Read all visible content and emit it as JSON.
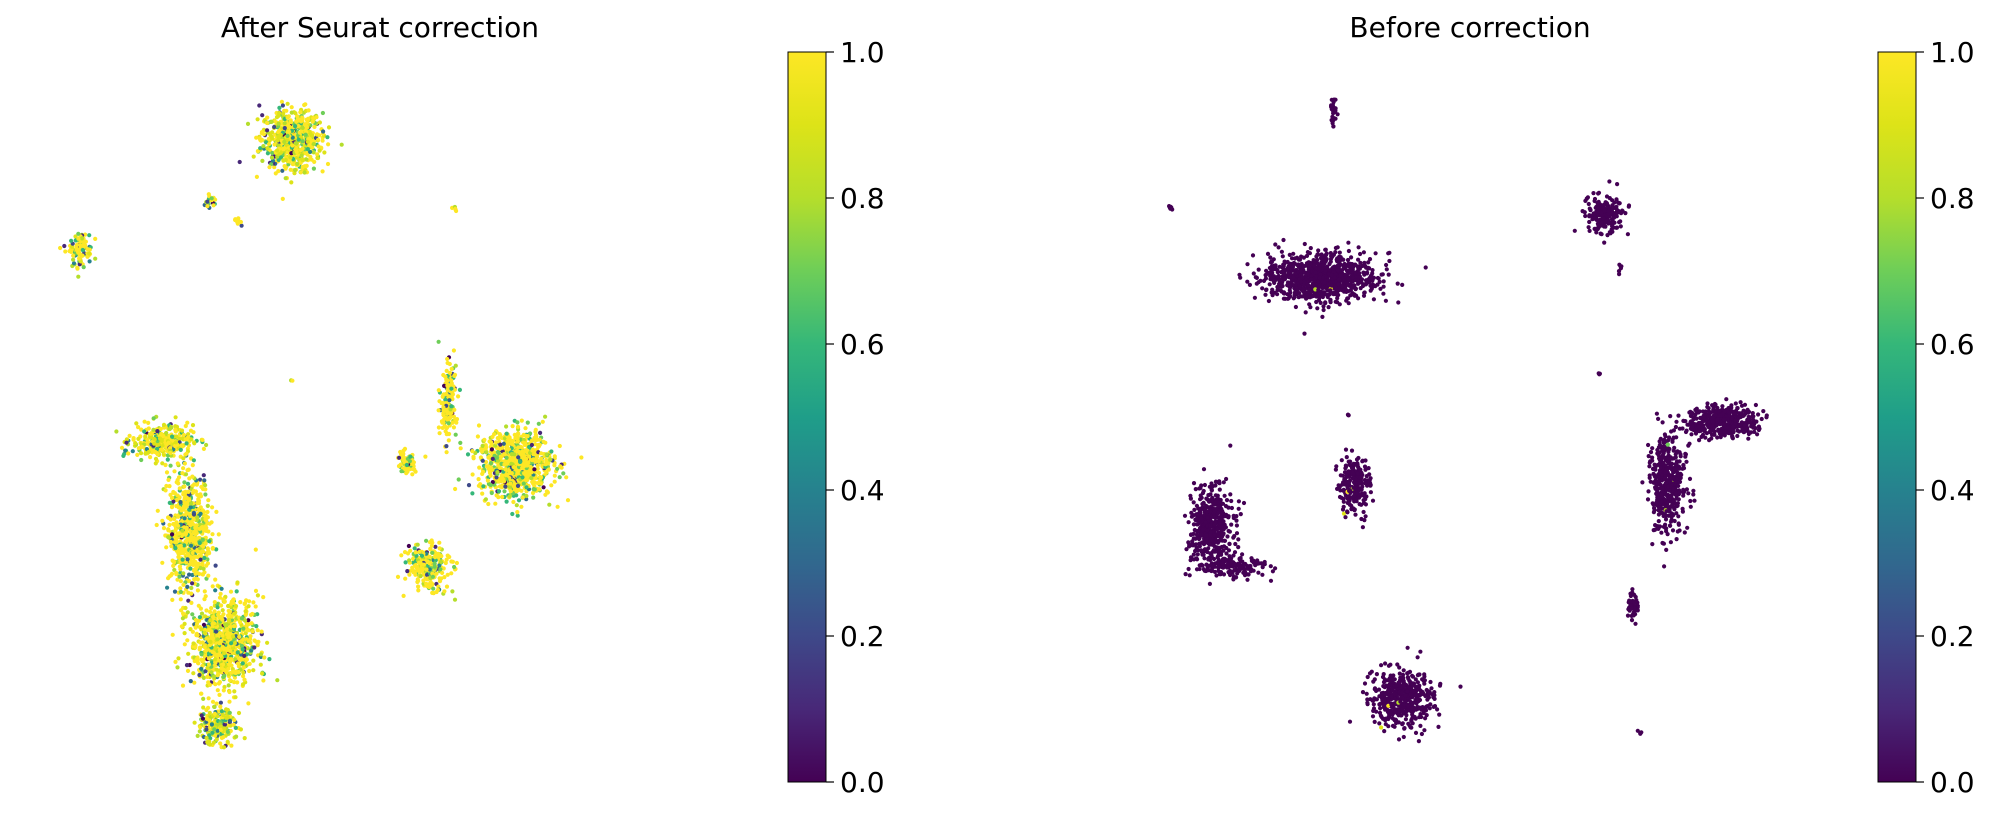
{
  "chart_data": [
    {
      "type": "scatter",
      "title": "After Seurat correction",
      "xlabel": "",
      "ylabel": "",
      "axes_visible": false,
      "colormap": "viridis",
      "colorbar": {
        "range": [
          0,
          1
        ],
        "ticks": [
          "0.0",
          "0.2",
          "0.4",
          "0.6",
          "0.8",
          "1.0"
        ]
      },
      "color_distribution": "mostly high (0.7-1.0) with scattered low-value cells",
      "clusters": [
        {
          "x": 0.37,
          "y": 0.9,
          "rx": 0.05,
          "ry": 0.048,
          "n": 620,
          "value_mean": 0.72
        },
        {
          "x": 0.06,
          "y": 0.74,
          "rx": 0.018,
          "ry": 0.028,
          "n": 110,
          "value_mean": 0.78
        },
        {
          "x": 0.25,
          "y": 0.81,
          "rx": 0.01,
          "ry": 0.01,
          "n": 22,
          "value_mean": 0.85
        },
        {
          "x": 0.29,
          "y": 0.78,
          "rx": 0.006,
          "ry": 0.01,
          "n": 10,
          "value_mean": 0.9
        },
        {
          "x": 0.61,
          "y": 0.8,
          "rx": 0.004,
          "ry": 0.004,
          "n": 6,
          "value_mean": 0.85
        },
        {
          "x": 0.37,
          "y": 0.55,
          "rx": 0.002,
          "ry": 0.002,
          "n": 2,
          "value_mean": 0.9
        },
        {
          "x": 0.18,
          "y": 0.46,
          "rx": 0.05,
          "ry": 0.028,
          "n": 300,
          "value_mean": 0.7
        },
        {
          "x": 0.22,
          "y": 0.33,
          "rx": 0.035,
          "ry": 0.09,
          "n": 700,
          "value_mean": 0.82
        },
        {
          "x": 0.27,
          "y": 0.17,
          "rx": 0.055,
          "ry": 0.07,
          "n": 800,
          "value_mean": 0.75
        },
        {
          "x": 0.26,
          "y": 0.05,
          "rx": 0.03,
          "ry": 0.03,
          "n": 220,
          "value_mean": 0.7
        },
        {
          "x": 0.7,
          "y": 0.43,
          "rx": 0.06,
          "ry": 0.055,
          "n": 850,
          "value_mean": 0.85
        },
        {
          "x": 0.54,
          "y": 0.43,
          "rx": 0.018,
          "ry": 0.018,
          "n": 70,
          "value_mean": 0.88
        },
        {
          "x": 0.6,
          "y": 0.52,
          "rx": 0.013,
          "ry": 0.06,
          "n": 170,
          "value_mean": 0.8
        },
        {
          "x": 0.57,
          "y": 0.28,
          "rx": 0.035,
          "ry": 0.035,
          "n": 260,
          "value_mean": 0.9
        }
      ]
    },
    {
      "type": "scatter",
      "title": "Before correction",
      "xlabel": "",
      "ylabel": "",
      "axes_visible": false,
      "colormap": "viridis",
      "colorbar": {
        "range": [
          0,
          1
        ],
        "ticks": [
          "0.0",
          "0.2",
          "0.4",
          "0.6",
          "0.8",
          "1.0"
        ]
      },
      "color_distribution": "nearly all 0.0, a few isolated high-value cells",
      "clusters": [
        {
          "x": 0.3,
          "y": 0.94,
          "rx": 0.006,
          "ry": 0.022,
          "n": 25,
          "value_mean": 0.0
        },
        {
          "x": 0.06,
          "y": 0.8,
          "rx": 0.004,
          "ry": 0.004,
          "n": 6,
          "value_mean": 0.0
        },
        {
          "x": 0.28,
          "y": 0.7,
          "rx": 0.09,
          "ry": 0.038,
          "n": 900,
          "value_mean": 0.0
        },
        {
          "x": 0.7,
          "y": 0.79,
          "rx": 0.03,
          "ry": 0.03,
          "n": 200,
          "value_mean": 0.0
        },
        {
          "x": 0.72,
          "y": 0.71,
          "rx": 0.004,
          "ry": 0.008,
          "n": 6,
          "value_mean": 0.0
        },
        {
          "x": 0.69,
          "y": 0.56,
          "rx": 0.002,
          "ry": 0.002,
          "n": 3,
          "value_mean": 0.0
        },
        {
          "x": 0.32,
          "y": 0.5,
          "rx": 0.002,
          "ry": 0.002,
          "n": 4,
          "value_mean": 0.0
        },
        {
          "x": 0.33,
          "y": 0.4,
          "rx": 0.025,
          "ry": 0.045,
          "n": 230,
          "value_mean": 0.0
        },
        {
          "x": 0.12,
          "y": 0.34,
          "rx": 0.032,
          "ry": 0.06,
          "n": 500,
          "value_mean": 0.0
        },
        {
          "x": 0.15,
          "y": 0.28,
          "rx": 0.055,
          "ry": 0.02,
          "n": 150,
          "value_mean": 0.0
        },
        {
          "x": 0.87,
          "y": 0.49,
          "rx": 0.055,
          "ry": 0.025,
          "n": 420,
          "value_mean": 0.0
        },
        {
          "x": 0.79,
          "y": 0.4,
          "rx": 0.03,
          "ry": 0.08,
          "n": 480,
          "value_mean": 0.0
        },
        {
          "x": 0.74,
          "y": 0.22,
          "rx": 0.008,
          "ry": 0.025,
          "n": 45,
          "value_mean": 0.0
        },
        {
          "x": 0.4,
          "y": 0.09,
          "rx": 0.05,
          "ry": 0.045,
          "n": 480,
          "value_mean": 0.0
        },
        {
          "x": 0.75,
          "y": 0.04,
          "rx": 0.003,
          "ry": 0.004,
          "n": 4,
          "value_mean": 0.0
        }
      ]
    }
  ]
}
